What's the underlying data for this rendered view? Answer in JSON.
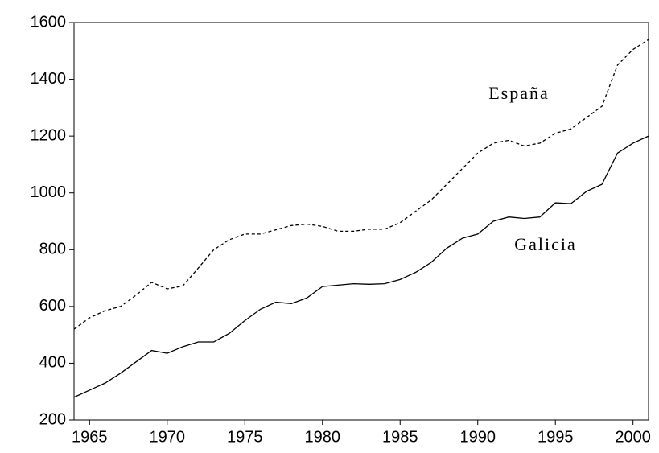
{
  "chart_data": {
    "type": "line",
    "x": [
      1964,
      1965,
      1966,
      1967,
      1968,
      1969,
      1970,
      1971,
      1972,
      1973,
      1974,
      1975,
      1976,
      1977,
      1978,
      1979,
      1980,
      1981,
      1982,
      1983,
      1984,
      1985,
      1986,
      1987,
      1988,
      1989,
      1990,
      1991,
      1992,
      1993,
      1994,
      1995,
      1996,
      1997,
      1998,
      1999,
      2000,
      2001
    ],
    "series": [
      {
        "name": "España",
        "color": "#000000",
        "dash": true,
        "values": [
          520,
          560,
          585,
          600,
          640,
          685,
          662,
          672,
          735,
          800,
          835,
          855,
          855,
          870,
          885,
          890,
          882,
          865,
          865,
          872,
          872,
          895,
          935,
          975,
          1030,
          1085,
          1140,
          1175,
          1185,
          1165,
          1175,
          1210,
          1225,
          1265,
          1305,
          1450,
          1505,
          1540
        ]
      },
      {
        "name": "Galicia",
        "color": "#000000",
        "dash": false,
        "values": [
          280,
          305,
          330,
          365,
          405,
          445,
          435,
          458,
          475,
          475,
          505,
          550,
          590,
          615,
          610,
          630,
          670,
          675,
          680,
          678,
          680,
          695,
          720,
          755,
          805,
          840,
          855,
          900,
          915,
          910,
          915,
          965,
          962,
          1005,
          1030,
          1140,
          1175,
          1200
        ]
      }
    ],
    "xlim": [
      1964,
      2001
    ],
    "xticks": [
      1965,
      1970,
      1975,
      1980,
      1985,
      1990,
      1995,
      2000
    ],
    "ylim": [
      200,
      1600
    ],
    "yticks": [
      200,
      400,
      600,
      800,
      1000,
      1200,
      1400,
      1600
    ]
  }
}
